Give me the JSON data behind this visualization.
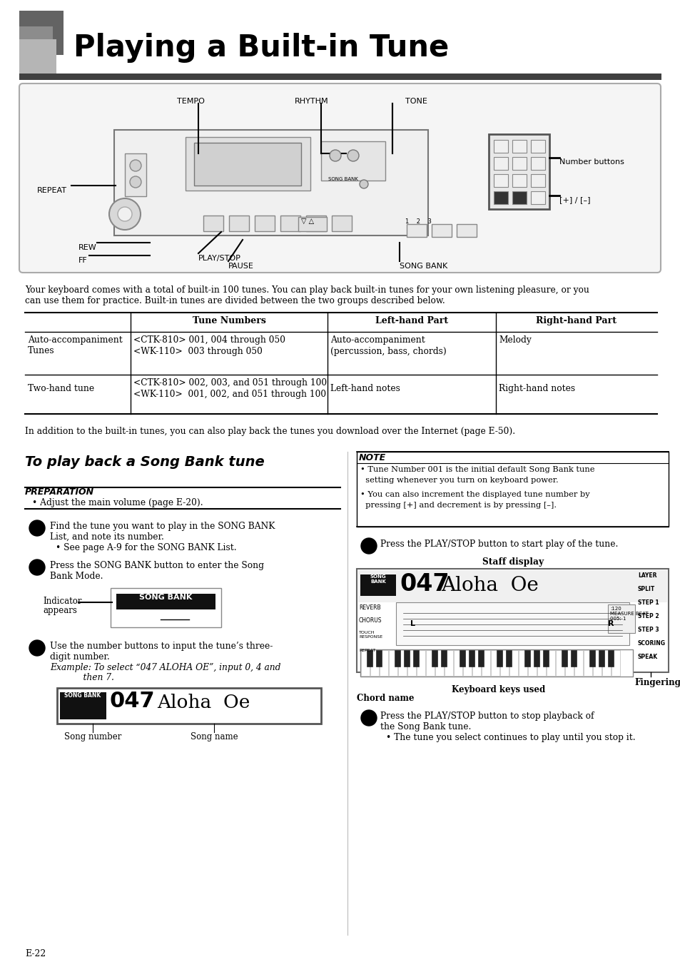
{
  "title": "Playing a Built-in Tune",
  "page_number": "E-22",
  "bg_color": "#ffffff",
  "intro_text": "Your keyboard comes with a total of built-in 100 tunes. You can play back built-in tunes for your own listening pleasure, or you\ncan use them for practice. Built-in tunes are divided between the two groups described below.",
  "table_headers": [
    "",
    "Tune Numbers",
    "Left-hand Part",
    "Right-hand Part"
  ],
  "table_row1_col0": "Auto-accompaniment\nTunes",
  "table_row1_col1a": "<CTK-810> 001, 004 through 050",
  "table_row1_col1b": "<WK-110>  003 through 050",
  "table_row1_col2a": "Auto-accompaniment",
  "table_row1_col2b": "(percussion, bass, chords)",
  "table_row1_col3": "Melody",
  "table_row2_col0": "Two-hand tune",
  "table_row2_col1a": "<CTK-810> 002, 003, and 051 through 100",
  "table_row2_col1b": "<WK-110>  001, 002, and 051 through 100",
  "table_row2_col2": "Left-hand notes",
  "table_row2_col3": "Right-hand notes",
  "internet_text": "In addition to the built-in tunes, you can also play back the tunes you download over the Internet (page E-50).",
  "section_title": "To play back a Song Bank tune",
  "prep_title": "PREPARATION",
  "prep_bullet": "Adjust the main volume (page E-20).",
  "step1_text_a": "Find the tune you want to play in the SONG BANK",
  "step1_text_b": "List, and note its number.",
  "step1_bullet": "• See page A-9 for the SONG BANK List.",
  "step2_text_a": "Press the SONG BANK button to enter the Song",
  "step2_text_b": "Bank Mode.",
  "indicator_label1": "Indicator",
  "indicator_label2": "appears",
  "indicator_text": "SONG BANK",
  "step3_text_a": "Use the number buttons to input the tune’s three-",
  "step3_text_b": "digit number.",
  "step3_example_a": "Example: To select “047 ALOHA OE”, input 0, 4 and",
  "step3_example_b": "            then 7.",
  "song_number_label": "Song number",
  "song_name_label": "Song name",
  "step4_text": "Press the PLAY/STOP button to start play of the tune.",
  "staff_display_label": "Staff display",
  "fingering_label": "Fingering",
  "keyboard_label": "Keyboard keys used",
  "chord_label": "Chord name",
  "step5_text_a": "Press the PLAY/STOP button to stop playback of",
  "step5_text_b": "the Song Bank tune.",
  "step5_bullet": "• The tune you select continues to play until you stop it.",
  "note_title": "NOTE",
  "note_bullet1a": "• Tune Number 001 is the initial default Song Bank tune",
  "note_bullet1b": "  setting whenever you turn on keyboard power.",
  "note_bullet2a": "• You can also increment the displayed tune number by",
  "note_bullet2b": "  pressing [+] and decrement is by pressing [–]."
}
